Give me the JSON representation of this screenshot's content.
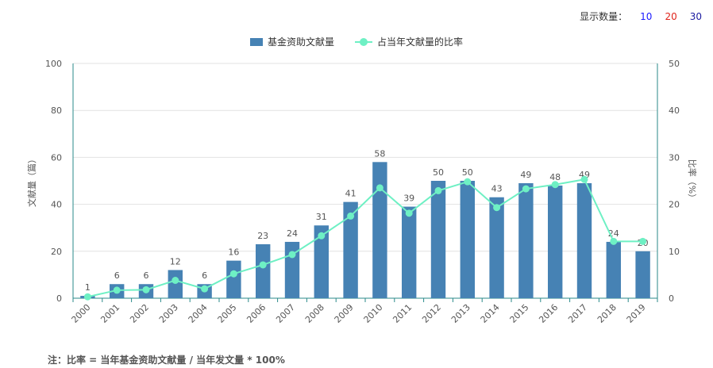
{
  "controls": {
    "label": "显示数量：",
    "options": [
      {
        "label": "10",
        "color": "#1a1aff"
      },
      {
        "label": "20",
        "color": "#e0241b"
      },
      {
        "label": "30",
        "color": "#1a1aa0"
      }
    ]
  },
  "colors": {
    "bar": "#4682b4",
    "line": "#6ef0c4",
    "axis_left": "#2a8a8a",
    "grid": "#e2e2e2"
  },
  "note": "注：比率 = 当年基金资助文献量 / 当年发文量 * 100%",
  "chart_data": {
    "type": "bar",
    "categories": [
      "2000",
      "2001",
      "2002",
      "2003",
      "2004",
      "2005",
      "2006",
      "2007",
      "2008",
      "2009",
      "2010",
      "2011",
      "2012",
      "2013",
      "2014",
      "2015",
      "2016",
      "2017",
      "2018",
      "2019"
    ],
    "series": [
      {
        "name": "基金资助文献量",
        "type": "bar",
        "axis": "left",
        "values": [
          1,
          6,
          6,
          12,
          6,
          16,
          23,
          24,
          31,
          41,
          58,
          39,
          50,
          50,
          43,
          49,
          48,
          49,
          24,
          20
        ]
      },
      {
        "name": "占当年文献量的比率",
        "type": "line",
        "axis": "right",
        "values": [
          0.3,
          1.7,
          1.8,
          3.8,
          2.0,
          5.2,
          7.1,
          9.3,
          13.3,
          17.5,
          23.5,
          18.1,
          22.9,
          24.8,
          19.3,
          23.3,
          24.2,
          25.3,
          12.1,
          12.1
        ]
      }
    ],
    "ylabel": "文献量（篇）",
    "y2label": "比率（%）",
    "ylim": [
      0,
      100
    ],
    "y2lim": [
      0,
      50
    ],
    "yticks": [
      "0",
      "20",
      "40",
      "60",
      "80",
      "100"
    ],
    "y2ticks": [
      "0",
      "10",
      "20",
      "30",
      "40",
      "50"
    ],
    "grid": true,
    "legend": "top-center"
  }
}
